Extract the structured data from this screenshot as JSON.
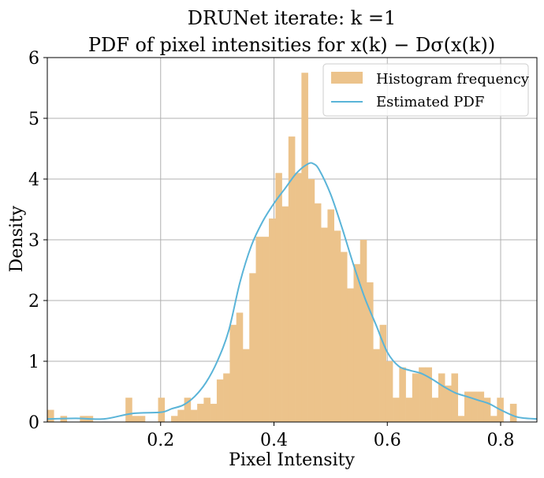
{
  "chart_data": {
    "type": "bar",
    "title_line1": "DRUNet iterate: k =1",
    "title_line2": "PDF of pixel intensities for x(k) − Dσ(x(k))",
    "xlabel": "Pixel Intensity",
    "ylabel": "Density",
    "xlim": [
      0.0,
      0.864
    ],
    "ylim": [
      0,
      6
    ],
    "xticks": [
      0.2,
      0.4,
      0.6,
      0.8
    ],
    "xtick_labels": [
      "0.2",
      "0.4",
      "0.6",
      "0.8"
    ],
    "yticks": [
      0,
      1,
      2,
      3,
      4,
      5,
      6
    ],
    "ytick_labels": [
      "0",
      "1",
      "2",
      "3",
      "4",
      "5",
      "6"
    ],
    "grid": true,
    "legend_position": "top-right",
    "colors": {
      "histogram": "#ecc38b",
      "pdf": "#5ab4d8",
      "grid": "#b0b0b0"
    },
    "series": [
      {
        "name": "Histogram frequency",
        "kind": "histogram",
        "bin_width": 0.0115,
        "bin_starts": [
          0.0,
          0.0115,
          0.023,
          0.0345,
          0.046,
          0.0575,
          0.069,
          0.0805,
          0.092,
          0.1035,
          0.115,
          0.1265,
          0.138,
          0.1495,
          0.161,
          0.1725,
          0.184,
          0.1955,
          0.207,
          0.2185,
          0.23,
          0.2415,
          0.253,
          0.2645,
          0.276,
          0.2875,
          0.299,
          0.3105,
          0.322,
          0.3335,
          0.345,
          0.3565,
          0.368,
          0.3795,
          0.391,
          0.4025,
          0.414,
          0.4255,
          0.437,
          0.4485,
          0.46,
          0.4715,
          0.483,
          0.4945,
          0.506,
          0.5175,
          0.529,
          0.5405,
          0.552,
          0.5635,
          0.575,
          0.5865,
          0.598,
          0.6095,
          0.621,
          0.6325,
          0.644,
          0.6555,
          0.667,
          0.6785,
          0.69,
          0.7015,
          0.713,
          0.7245,
          0.736,
          0.7475,
          0.759,
          0.7705,
          0.782,
          0.7935,
          0.805,
          0.8165,
          0.828,
          0.8395,
          0.851
        ],
        "values": [
          0.2,
          0,
          0.1,
          0,
          0,
          0.1,
          0.1,
          0,
          0,
          0,
          0,
          0,
          0.4,
          0.1,
          0.1,
          0,
          0,
          0.4,
          0,
          0.1,
          0.2,
          0.4,
          0.2,
          0.3,
          0.4,
          0.3,
          0.7,
          0.8,
          1.6,
          1.8,
          1.2,
          2.45,
          3.05,
          3.05,
          3.35,
          4.1,
          3.55,
          4.7,
          4.1,
          5.75,
          4.0,
          3.6,
          3.2,
          3.5,
          3.15,
          2.8,
          2.2,
          2.6,
          3.0,
          2.3,
          1.2,
          1.6,
          1.0,
          0.4,
          0.9,
          0.4,
          0.8,
          0.9,
          0.9,
          0.4,
          0.8,
          0.6,
          0.8,
          0.1,
          0.5,
          0.5,
          0.5,
          0.4,
          0.1,
          0.4,
          0,
          0.3,
          0,
          0,
          0
        ]
      },
      {
        "name": "Estimated PDF",
        "kind": "line",
        "x": [
          0.0,
          0.05,
          0.1,
          0.15,
          0.2,
          0.22,
          0.24,
          0.26,
          0.28,
          0.3,
          0.32,
          0.34,
          0.36,
          0.38,
          0.4,
          0.42,
          0.44,
          0.46,
          0.47,
          0.48,
          0.5,
          0.52,
          0.54,
          0.56,
          0.58,
          0.6,
          0.62,
          0.64,
          0.66,
          0.68,
          0.7,
          0.72,
          0.74,
          0.76,
          0.78,
          0.8,
          0.83,
          0.864
        ],
        "y": [
          0.05,
          0.06,
          0.05,
          0.14,
          0.16,
          0.22,
          0.28,
          0.42,
          0.65,
          1.0,
          1.5,
          2.3,
          2.9,
          3.3,
          3.6,
          3.85,
          4.1,
          4.25,
          4.25,
          4.15,
          3.75,
          3.2,
          2.6,
          2.05,
          1.6,
          1.15,
          0.92,
          0.85,
          0.8,
          0.7,
          0.58,
          0.48,
          0.42,
          0.36,
          0.3,
          0.2,
          0.08,
          0.05
        ]
      }
    ]
  }
}
